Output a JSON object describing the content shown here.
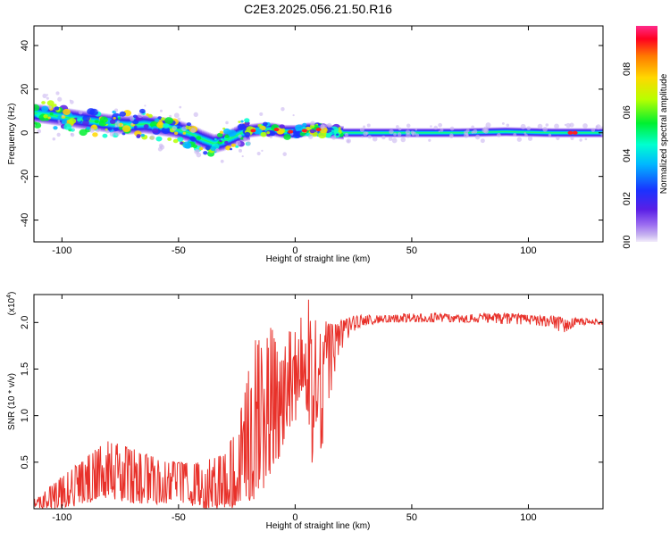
{
  "title": "C2E3.2025.056.21.50.R16",
  "colors": {
    "trace": "#e8312a",
    "axis": "#000000",
    "background": "#ffffff"
  },
  "chart_data": [
    {
      "type": "heatmap",
      "xlabel": "Height of straight line (km)",
      "ylabel": "Frequency (Hz)",
      "xlim": [
        -112,
        132
      ],
      "ylim": [
        -50,
        49
      ],
      "x_ticks": [
        -100,
        -50,
        0,
        50,
        100
      ],
      "y_ticks": [
        -40,
        -20,
        0,
        20,
        40
      ],
      "grid": false,
      "ridge": {
        "x": [
          -112,
          -105,
          -98,
          -92,
          -85,
          -78,
          -72,
          -65,
          -58,
          -52,
          -46,
          -40,
          -35,
          -31,
          -27,
          -23,
          -19,
          -15,
          -10,
          -5,
          0,
          5,
          10,
          15,
          20,
          30,
          50,
          70,
          90,
          110,
          132
        ],
        "freq": [
          9,
          8,
          7,
          6,
          5,
          4,
          3.5,
          4,
          3,
          2,
          0,
          -3,
          -5,
          -4,
          -2,
          0,
          1,
          1.5,
          1.5,
          0.5,
          0.5,
          1.5,
          1.5,
          0.5,
          0,
          0,
          0,
          0,
          0.5,
          0,
          0
        ]
      },
      "colorbar": {
        "label": "Normalized spectral amplitude",
        "ticks": [
          "0.0",
          "0.2",
          "0.4",
          "0.6",
          "0.8"
        ],
        "range": [
          0,
          1
        ]
      }
    },
    {
      "type": "line",
      "xlabel": "Height of straight line (km)",
      "ylabel": "SNR (10 * v/v)",
      "multiplier": "(x10",
      "multiplier_exp": "4",
      "multiplier_close": ")",
      "xlim": [
        -112,
        132
      ],
      "ylim": [
        0,
        2.3
      ],
      "x_ticks": [
        -100,
        -50,
        0,
        50,
        100
      ],
      "y_ticks": [
        "0.5",
        "1.0",
        "1.5",
        "2.0"
      ],
      "grid": false,
      "series": [
        {
          "x": [
            -112,
            -100,
            -90,
            -80,
            -70,
            -60,
            -50,
            -40,
            -30,
            -25,
            -22,
            -18,
            -14,
            -10,
            -6,
            -3,
            0,
            2,
            4,
            6,
            8,
            10,
            12,
            15,
            18,
            22,
            25,
            30,
            40,
            50,
            60,
            70,
            80,
            90,
            100,
            110,
            115,
            120,
            132
          ],
          "values": [
            0.05,
            0.15,
            0.28,
            0.38,
            0.33,
            0.28,
            0.25,
            0.22,
            0.25,
            0.42,
            0.6,
            0.75,
            0.95,
            1.15,
            1.2,
            1.25,
            1.4,
            1.5,
            1.6,
            1.45,
            1.25,
            1.25,
            1.6,
            1.75,
            1.85,
            1.95,
            2.0,
            2.02,
            2.03,
            2.05,
            2.06,
            2.05,
            2.05,
            2.06,
            2.04,
            2.02,
            1.98,
            2.02,
            2.0
          ],
          "envelope_max": [
            0.1,
            0.35,
            0.55,
            0.75,
            0.65,
            0.55,
            0.5,
            0.5,
            0.6,
            0.9,
            1.2,
            1.9,
            1.8,
            2.0,
            1.6,
            1.9,
            1.95,
            2.1,
            2.05,
            2.3,
            2.2,
            1.9,
            1.9,
            2.0,
            2.0,
            2.05,
            2.08,
            2.08,
            2.08,
            2.1,
            2.1,
            2.08,
            2.1,
            2.1,
            2.08,
            2.07,
            2.05,
            2.05,
            2.03
          ],
          "envelope_min": [
            0.0,
            0.0,
            0.05,
            0.1,
            0.05,
            0.05,
            0.05,
            0.0,
            0.0,
            0.0,
            0.05,
            0.1,
            0.2,
            0.3,
            0.6,
            0.9,
            0.8,
            1.2,
            1.3,
            0.8,
            0.25,
            0.5,
            0.6,
            1.2,
            1.6,
            1.8,
            1.9,
            1.97,
            2.0,
            2.0,
            2.0,
            2.0,
            2.0,
            1.98,
            1.98,
            1.95,
            1.88,
            1.97,
            1.98
          ]
        }
      ]
    }
  ]
}
